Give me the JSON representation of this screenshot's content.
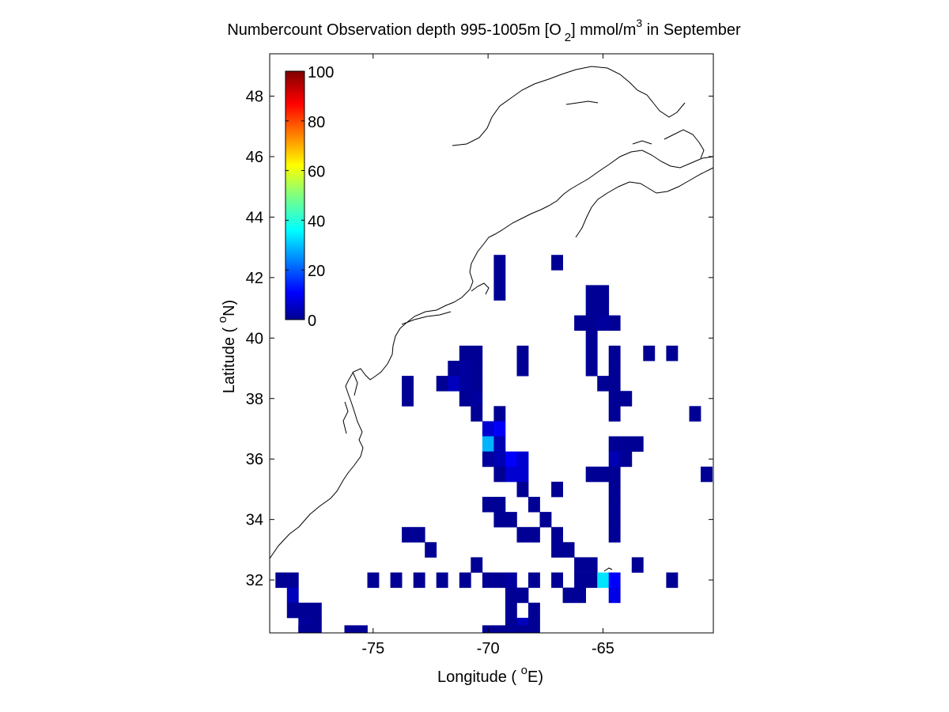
{
  "chart_data": {
    "type": "heatmap",
    "title": {
      "part1": "Numbercount Observation depth 995-1005m [O",
      "sub": "2",
      "part2": "] mmol/m",
      "sup": "3",
      "part3": " in September"
    },
    "xlabel": {
      "prefix": "Longitude ( ",
      "sup": "o",
      "suffix": "E)"
    },
    "ylabel": {
      "prefix": "Latitude ( ",
      "sup": "o",
      "suffix": "N)"
    },
    "xlim": [
      -79.5,
      -60.2
    ],
    "ylim": [
      30.25,
      49.4
    ],
    "xticks": [
      -75,
      -70,
      -65
    ],
    "yticks": [
      32,
      34,
      36,
      38,
      40,
      42,
      44,
      46,
      48
    ],
    "grid": false,
    "colormap": "jet",
    "colorbar": {
      "location": "upper-left inside axes",
      "range": [
        0,
        100
      ],
      "ticks": [
        0,
        20,
        40,
        60,
        80,
        100
      ]
    },
    "cell_size_deg": 0.5,
    "cells": [
      {
        "lon": -69.5,
        "lat": 42.5,
        "value": 2
      },
      {
        "lon": -69.5,
        "lat": 42.0,
        "value": 2
      },
      {
        "lon": -69.5,
        "lat": 41.5,
        "value": 2
      },
      {
        "lon": -67.0,
        "lat": 42.5,
        "value": 2
      },
      {
        "lon": -65.5,
        "lat": 41.5,
        "value": 2
      },
      {
        "lon": -65.0,
        "lat": 41.5,
        "value": 2
      },
      {
        "lon": -65.5,
        "lat": 41.0,
        "value": 2
      },
      {
        "lon": -65.0,
        "lat": 41.0,
        "value": 2
      },
      {
        "lon": -66.0,
        "lat": 40.5,
        "value": 2
      },
      {
        "lon": -65.5,
        "lat": 40.5,
        "value": 2
      },
      {
        "lon": -65.0,
        "lat": 40.5,
        "value": 3
      },
      {
        "lon": -64.5,
        "lat": 40.5,
        "value": 2
      },
      {
        "lon": -65.5,
        "lat": 40.0,
        "value": 2
      },
      {
        "lon": -65.5,
        "lat": 39.5,
        "value": 2
      },
      {
        "lon": -64.5,
        "lat": 39.5,
        "value": 2
      },
      {
        "lon": -63.0,
        "lat": 39.5,
        "value": 2
      },
      {
        "lon": -62.0,
        "lat": 39.5,
        "value": 2
      },
      {
        "lon": -65.5,
        "lat": 39.0,
        "value": 2
      },
      {
        "lon": -64.5,
        "lat": 39.0,
        "value": 2
      },
      {
        "lon": -65.0,
        "lat": 38.5,
        "value": 2
      },
      {
        "lon": -64.5,
        "lat": 38.5,
        "value": 2
      },
      {
        "lon": -64.5,
        "lat": 38.0,
        "value": 2
      },
      {
        "lon": -64.0,
        "lat": 38.0,
        "value": 2
      },
      {
        "lon": -64.5,
        "lat": 37.5,
        "value": 2
      },
      {
        "lon": -61.0,
        "lat": 37.5,
        "value": 2
      },
      {
        "lon": -64.5,
        "lat": 36.5,
        "value": 2
      },
      {
        "lon": -64.0,
        "lat": 36.5,
        "value": 2
      },
      {
        "lon": -63.5,
        "lat": 36.5,
        "value": 2
      },
      {
        "lon": -64.5,
        "lat": 36.0,
        "value": 5
      },
      {
        "lon": -64.0,
        "lat": 36.0,
        "value": 2
      },
      {
        "lon": -65.5,
        "lat": 35.5,
        "value": 2
      },
      {
        "lon": -65.0,
        "lat": 35.5,
        "value": 2
      },
      {
        "lon": -64.5,
        "lat": 35.5,
        "value": 2
      },
      {
        "lon": -60.5,
        "lat": 35.5,
        "value": 2
      },
      {
        "lon": -64.5,
        "lat": 35.0,
        "value": 2
      },
      {
        "lon": -64.5,
        "lat": 34.5,
        "value": 2
      },
      {
        "lon": -64.5,
        "lat": 34.0,
        "value": 2
      },
      {
        "lon": -64.5,
        "lat": 33.5,
        "value": 2
      },
      {
        "lon": -71.0,
        "lat": 39.5,
        "value": 2
      },
      {
        "lon": -70.5,
        "lat": 39.5,
        "value": 2
      },
      {
        "lon": -68.5,
        "lat": 39.5,
        "value": 2
      },
      {
        "lon": -71.5,
        "lat": 39.0,
        "value": 2
      },
      {
        "lon": -71.0,
        "lat": 39.0,
        "value": 3
      },
      {
        "lon": -70.5,
        "lat": 39.0,
        "value": 2
      },
      {
        "lon": -68.5,
        "lat": 39.0,
        "value": 2
      },
      {
        "lon": -73.5,
        "lat": 38.5,
        "value": 2
      },
      {
        "lon": -72.0,
        "lat": 38.5,
        "value": 2
      },
      {
        "lon": -71.5,
        "lat": 38.5,
        "value": 6
      },
      {
        "lon": -71.0,
        "lat": 38.5,
        "value": 3
      },
      {
        "lon": -70.5,
        "lat": 38.5,
        "value": 2
      },
      {
        "lon": -73.5,
        "lat": 38.0,
        "value": 2
      },
      {
        "lon": -71.0,
        "lat": 38.0,
        "value": 2
      },
      {
        "lon": -70.5,
        "lat": 38.0,
        "value": 3
      },
      {
        "lon": -70.5,
        "lat": 37.5,
        "value": 2
      },
      {
        "lon": -69.5,
        "lat": 37.5,
        "value": 2
      },
      {
        "lon": -70.0,
        "lat": 37.0,
        "value": 8
      },
      {
        "lon": -69.5,
        "lat": 37.0,
        "value": 12
      },
      {
        "lon": -70.0,
        "lat": 36.5,
        "value": 30
      },
      {
        "lon": -69.5,
        "lat": 36.5,
        "value": 5
      },
      {
        "lon": -70.0,
        "lat": 36.0,
        "value": 3
      },
      {
        "lon": -69.5,
        "lat": 36.0,
        "value": 5
      },
      {
        "lon": -69.0,
        "lat": 36.0,
        "value": 12
      },
      {
        "lon": -68.5,
        "lat": 36.0,
        "value": 8
      },
      {
        "lon": -69.5,
        "lat": 35.5,
        "value": 2
      },
      {
        "lon": -69.0,
        "lat": 35.5,
        "value": 8
      },
      {
        "lon": -68.5,
        "lat": 35.5,
        "value": 8
      },
      {
        "lon": -68.5,
        "lat": 35.0,
        "value": 2
      },
      {
        "lon": -67.0,
        "lat": 35.0,
        "value": 2
      },
      {
        "lon": -70.0,
        "lat": 34.5,
        "value": 2
      },
      {
        "lon": -69.5,
        "lat": 34.5,
        "value": 2
      },
      {
        "lon": -68.0,
        "lat": 34.5,
        "value": 2
      },
      {
        "lon": -69.5,
        "lat": 34.0,
        "value": 2
      },
      {
        "lon": -69.0,
        "lat": 34.0,
        "value": 2
      },
      {
        "lon": -67.5,
        "lat": 34.0,
        "value": 2
      },
      {
        "lon": -73.5,
        "lat": 33.5,
        "value": 2
      },
      {
        "lon": -73.0,
        "lat": 33.5,
        "value": 2
      },
      {
        "lon": -68.5,
        "lat": 33.5,
        "value": 2
      },
      {
        "lon": -68.0,
        "lat": 33.5,
        "value": 2
      },
      {
        "lon": -67.0,
        "lat": 33.5,
        "value": 2
      },
      {
        "lon": -72.5,
        "lat": 33.0,
        "value": 2
      },
      {
        "lon": -67.0,
        "lat": 33.0,
        "value": 2
      },
      {
        "lon": -66.5,
        "lat": 33.0,
        "value": 2
      },
      {
        "lon": -70.5,
        "lat": 32.5,
        "value": 2
      },
      {
        "lon": -66.0,
        "lat": 32.5,
        "value": 2
      },
      {
        "lon": -65.5,
        "lat": 32.5,
        "value": 2
      },
      {
        "lon": -63.5,
        "lat": 32.5,
        "value": 2
      },
      {
        "lon": -79.0,
        "lat": 32.0,
        "value": 2
      },
      {
        "lon": -78.5,
        "lat": 32.0,
        "value": 2
      },
      {
        "lon": -75.0,
        "lat": 32.0,
        "value": 2
      },
      {
        "lon": -74.0,
        "lat": 32.0,
        "value": 2
      },
      {
        "lon": -73.0,
        "lat": 32.0,
        "value": 2
      },
      {
        "lon": -72.0,
        "lat": 32.0,
        "value": 2
      },
      {
        "lon": -71.0,
        "lat": 32.0,
        "value": 2
      },
      {
        "lon": -70.0,
        "lat": 32.0,
        "value": 2
      },
      {
        "lon": -69.5,
        "lat": 32.0,
        "value": 2
      },
      {
        "lon": -69.0,
        "lat": 32.0,
        "value": 3
      },
      {
        "lon": -68.0,
        "lat": 32.0,
        "value": 2
      },
      {
        "lon": -67.0,
        "lat": 32.0,
        "value": 2
      },
      {
        "lon": -66.0,
        "lat": 32.0,
        "value": 2
      },
      {
        "lon": -65.5,
        "lat": 32.0,
        "value": 2
      },
      {
        "lon": -65.0,
        "lat": 32.0,
        "value": 35
      },
      {
        "lon": -64.5,
        "lat": 32.0,
        "value": 12
      },
      {
        "lon": -62.0,
        "lat": 32.0,
        "value": 2
      },
      {
        "lon": -78.5,
        "lat": 31.5,
        "value": 6
      },
      {
        "lon": -69.0,
        "lat": 31.5,
        "value": 2
      },
      {
        "lon": -68.5,
        "lat": 31.5,
        "value": 2
      },
      {
        "lon": -66.5,
        "lat": 31.5,
        "value": 2
      },
      {
        "lon": -66.0,
        "lat": 31.5,
        "value": 2
      },
      {
        "lon": -64.5,
        "lat": 31.5,
        "value": 10
      },
      {
        "lon": -78.5,
        "lat": 31.0,
        "value": 2
      },
      {
        "lon": -78.0,
        "lat": 31.0,
        "value": 2
      },
      {
        "lon": -69.0,
        "lat": 31.0,
        "value": 2
      },
      {
        "lon": -68.0,
        "lat": 31.0,
        "value": 2
      },
      {
        "lon": -77.5,
        "lat": 31.0,
        "value": 2
      },
      {
        "lon": -78.0,
        "lat": 30.5,
        "value": 3
      },
      {
        "lon": -77.5,
        "lat": 30.5,
        "value": 2
      },
      {
        "lon": -69.0,
        "lat": 30.5,
        "value": 2
      },
      {
        "lon": -68.5,
        "lat": 30.5,
        "value": 6
      },
      {
        "lon": -68.0,
        "lat": 30.5,
        "value": 2
      },
      {
        "lon": -78.0,
        "lat": 30.25,
        "value": 2
      },
      {
        "lon": -76.0,
        "lat": 30.25,
        "value": 2
      },
      {
        "lon": -75.5,
        "lat": 30.25,
        "value": 2
      },
      {
        "lon": -70.0,
        "lat": 30.25,
        "value": 2
      },
      {
        "lon": -69.5,
        "lat": 30.25,
        "value": 2
      },
      {
        "lon": -68.5,
        "lat": 30.25,
        "value": 2
      }
    ]
  }
}
